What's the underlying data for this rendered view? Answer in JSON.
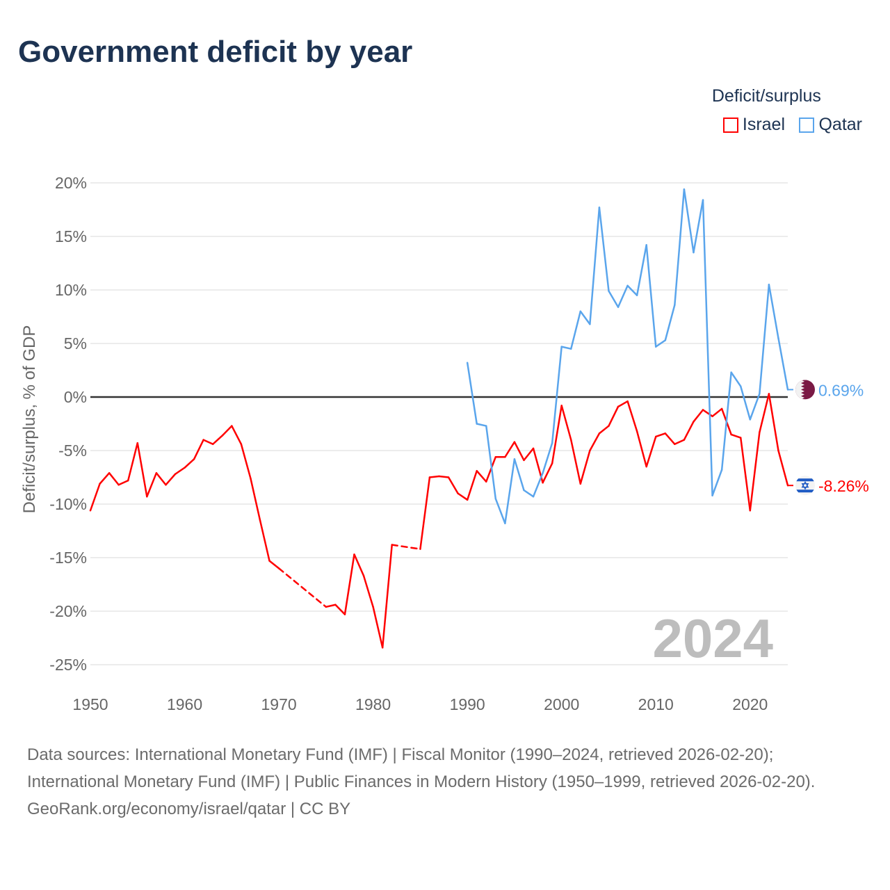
{
  "title": "Government deficit by year",
  "legend": {
    "title": "Deficit/surplus",
    "items": [
      {
        "name": "Israel",
        "color": "#ff0000"
      },
      {
        "name": "Qatar",
        "color": "#5aa5ec"
      }
    ]
  },
  "watermark_year": "2024",
  "footer": {
    "sources": "Data sources: International Monetary Fund (IMF) | Fiscal Monitor (1990–2024, retrieved 2026-02-20); International Monetary Fund (IMF) | Public Finances in Modern History (1950–1999, retrieved 2026-02-20).",
    "credit": "GeoRank.org/economy/israel/qatar | CC BY"
  },
  "chart_data": {
    "type": "line",
    "title": "Government deficit by year",
    "xlabel": "",
    "ylabel": "Deficit/surplus, % of GDP",
    "xlim": [
      1950,
      2024
    ],
    "ylim": [
      -25,
      20
    ],
    "x_ticks": [
      1950,
      1960,
      1970,
      1980,
      1990,
      2000,
      2010,
      2020
    ],
    "x_tick_labels": [
      "1950",
      "1960",
      "1970",
      "1980",
      "1990",
      "2000",
      "2010",
      "2020"
    ],
    "y_ticks": [
      20,
      15,
      10,
      5,
      0,
      -5,
      -10,
      -15,
      -20,
      -25
    ],
    "y_tick_labels": [
      "20%",
      "15%",
      "10%",
      "5%",
      "0%",
      "-5%",
      "-10%",
      "-15%",
      "-20%",
      "-25%"
    ],
    "grid": true,
    "legend_position": "top-right",
    "series": [
      {
        "name": "Israel",
        "color": "#ff0000",
        "start_year": 1950,
        "end_label": "-8.26%",
        "flag": "israel-flag",
        "values": [
          -10.6,
          -8.1,
          -7.1,
          -8.2,
          -7.8,
          -4.3,
          -9.3,
          -7.1,
          -8.2,
          -7.2,
          -6.6,
          -5.8,
          -4.0,
          -4.4,
          -3.6,
          -2.7,
          -4.4,
          -7.6,
          -11.5,
          -15.3,
          -16.0,
          null,
          null,
          null,
          null,
          -19.6,
          -19.4,
          -20.3,
          -14.7,
          -16.7,
          -19.6,
          -23.4,
          -13.8,
          null,
          null,
          -14.2,
          -7.5,
          -7.4,
          -7.5,
          -9.0,
          -9.6,
          -6.9,
          -7.9,
          -5.6,
          -5.6,
          -4.2,
          -5.9,
          -4.8,
          -8.0,
          -6.2,
          -0.8,
          -4.0,
          -8.1,
          -5.0,
          -3.4,
          -2.7,
          -0.9,
          -0.4,
          -3.2,
          -6.5,
          -3.7,
          -3.4,
          -4.4,
          -4.0,
          -2.3,
          -1.2,
          -1.8,
          -1.1,
          -3.5,
          -3.8,
          -10.6,
          -3.3,
          0.3,
          -5.0,
          -8.26
        ]
      },
      {
        "name": "Qatar",
        "color": "#5aa5ec",
        "start_year": 1990,
        "end_label": "0.69%",
        "flag": "qatar-flag",
        "values": [
          3.2,
          -2.5,
          -2.7,
          -9.5,
          -11.8,
          -5.8,
          -8.7,
          -9.3,
          -7.1,
          -4.3,
          4.7,
          4.5,
          8.0,
          6.8,
          17.7,
          9.9,
          8.4,
          10.4,
          9.5,
          14.2,
          4.7,
          5.3,
          8.6,
          19.4,
          13.5,
          18.4,
          -9.2,
          -6.8,
          2.3,
          1.0,
          -2.1,
          0.3,
          10.5,
          5.5,
          0.69
        ]
      }
    ]
  }
}
